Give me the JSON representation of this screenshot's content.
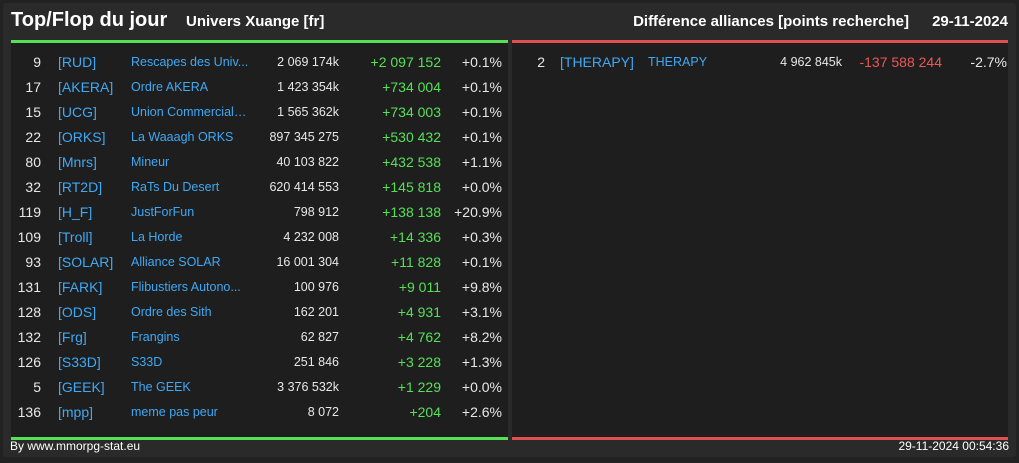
{
  "header": {
    "title": "Top/Flop du jour",
    "universe": "Univers Xuange [fr]",
    "metric": "Différence alliances [points recherche]",
    "date": "29-11-2024"
  },
  "colors": {
    "background": "#2a2a2a",
    "panel": "#1e1e1e",
    "top_accent": "#55e055",
    "flop_accent": "#e05050",
    "link": "#3fa9f5"
  },
  "top": [
    {
      "rank": "9",
      "tag": "[RUD]",
      "name": "Rescapes des Univ...",
      "points": "2 069 174k",
      "diff": "+2 097 152",
      "pct": "+0.1%"
    },
    {
      "rank": "17",
      "tag": "[AKERA]",
      "name": "Ordre AKERA",
      "points": "1 423 354k",
      "diff": "+734 004",
      "pct": "+0.1%"
    },
    {
      "rank": "15",
      "tag": "[UCG]",
      "name": "Union Commerciale...",
      "points": "1 565 362k",
      "diff": "+734 003",
      "pct": "+0.1%"
    },
    {
      "rank": "22",
      "tag": "[ORKS]",
      "name": "La Waaagh ORKS",
      "points": "897 345 275",
      "diff": "+530 432",
      "pct": "+0.1%"
    },
    {
      "rank": "80",
      "tag": "[Mnrs]",
      "name": "Mineur",
      "points": "40 103 822",
      "diff": "+432 538",
      "pct": "+1.1%"
    },
    {
      "rank": "32",
      "tag": "[RT2D]",
      "name": "RaTs Du Desert",
      "points": "620 414 553",
      "diff": "+145 818",
      "pct": "+0.0%"
    },
    {
      "rank": "119",
      "tag": "[H_F]",
      "name": "JustForFun",
      "points": "798 912",
      "diff": "+138 138",
      "pct": "+20.9%"
    },
    {
      "rank": "109",
      "tag": "[Troll]",
      "name": "La Horde",
      "points": "4 232 008",
      "diff": "+14 336",
      "pct": "+0.3%"
    },
    {
      "rank": "93",
      "tag": "[SOLAR]",
      "name": "Alliance SOLAR",
      "points": "16 001 304",
      "diff": "+11 828",
      "pct": "+0.1%"
    },
    {
      "rank": "131",
      "tag": "[FARK]",
      "name": "Flibustiers Autono...",
      "points": "100 976",
      "diff": "+9 011",
      "pct": "+9.8%"
    },
    {
      "rank": "128",
      "tag": "[ODS]",
      "name": "Ordre des Sith",
      "points": "162 201",
      "diff": "+4 931",
      "pct": "+3.1%"
    },
    {
      "rank": "132",
      "tag": "[Frg]",
      "name": "Frangins",
      "points": "62 827",
      "diff": "+4 762",
      "pct": "+8.2%"
    },
    {
      "rank": "126",
      "tag": "[S33D]",
      "name": "S33D",
      "points": "251 846",
      "diff": "+3 228",
      "pct": "+1.3%"
    },
    {
      "rank": "5",
      "tag": "[GEEK]",
      "name": "The GEEK",
      "points": "3 376 532k",
      "diff": "+1 229",
      "pct": "+0.0%"
    },
    {
      "rank": "136",
      "tag": "[mpp]",
      "name": "meme pas peur",
      "points": "8 072",
      "diff": "+204",
      "pct": "+2.6%"
    }
  ],
  "flop": [
    {
      "rank": "2",
      "tag": "[THERAPY]",
      "name": "THERAPY",
      "points": "4 962 845k",
      "diff": "-137 588 244",
      "pct": "-2.7%"
    }
  ],
  "footer": {
    "credit": "By www.mmorpg-stat.eu",
    "timestamp": "29-11-2024 00:54:36"
  }
}
